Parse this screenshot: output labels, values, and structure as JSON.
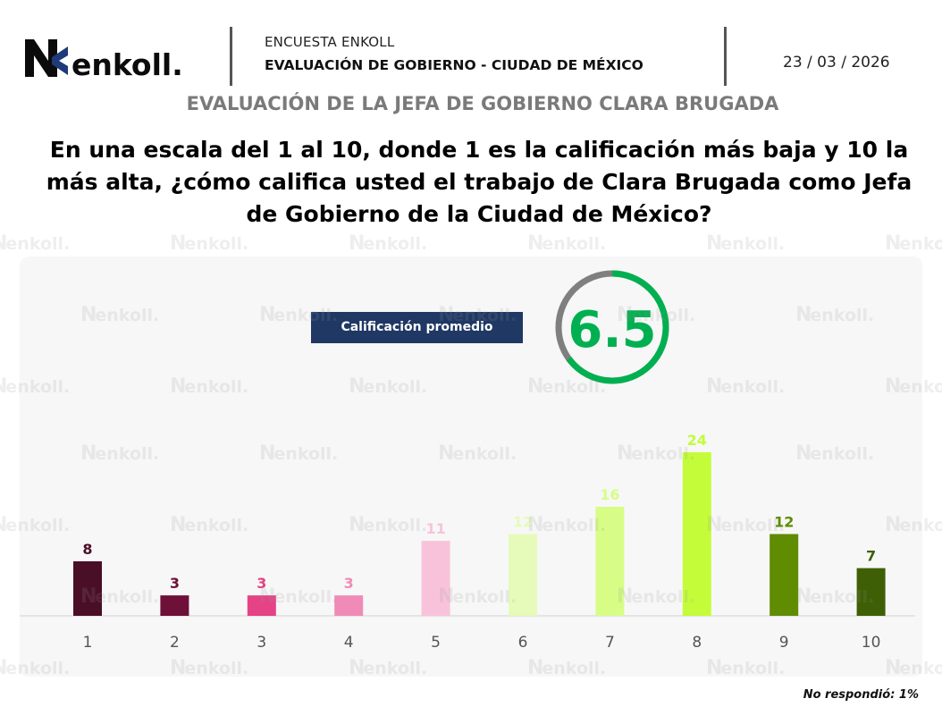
{
  "header": {
    "brand": "enkoll.",
    "survey_name": "ENCUESTA ENKOLL",
    "survey_title": "EVALUACIÓN DE GOBIERNO - CIUDAD DE MÉXICO",
    "date": "23 / 03 / 2026"
  },
  "section_title": "EVALUACIÓN DE LA JEFA DE GOBIERNO CLARA BRUGADA",
  "question": "En una escala del 1 al 10, donde 1 es la calificación más baja y 10 la más alta, ¿cómo califica usted el trabajo de Clara Brugada como Jefa de Gobierno de la Ciudad de México?",
  "average": {
    "label": "Calificación promedio",
    "value": "6.5",
    "fraction": 0.65,
    "ring_color": "#00b050",
    "remainder_color": "#7f7f7f"
  },
  "watermark_text": "enkoll.",
  "footnote": "No respondió: 1%",
  "chart_data": {
    "type": "bar",
    "title": "",
    "xlabel": "",
    "ylabel": "",
    "categories": [
      "1",
      "2",
      "3",
      "4",
      "5",
      "6",
      "7",
      "8",
      "9",
      "10"
    ],
    "values": [
      8,
      3,
      3,
      3,
      11,
      12,
      16,
      24,
      12,
      7
    ],
    "colors": [
      "#4a0f27",
      "#6e1038",
      "#e54386",
      "#f08bb8",
      "#f8c3da",
      "#e6fbb9",
      "#d7fd86",
      "#c4fc3a",
      "#5f8c00",
      "#3f5f06"
    ],
    "label_colors": [
      "#4a0f27",
      "#6e1038",
      "#e54386",
      "#f08bb8",
      "#f8c3da",
      "#e6fbb9",
      "#d7fd86",
      "#c4fc3a",
      "#5f8c00",
      "#3f5f06"
    ],
    "ylim": [
      0,
      24
    ],
    "grid": false,
    "unit": "%"
  }
}
